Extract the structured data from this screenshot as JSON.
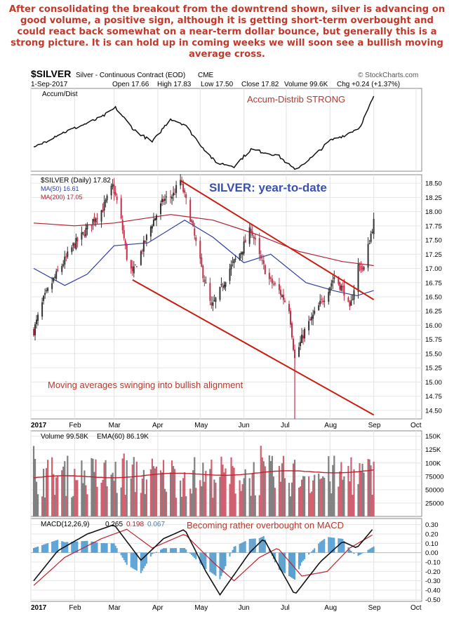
{
  "commentary": "After consolidating the breakout from the downtrend shown, silver is advancing on good volume, a positive sign, although it is getting short-term overbought and could react back somewhat on a near-term dollar bounce, but generally this is a strong picture. It is can hold up in coming weeks we will soon see a bullish moving average cross.",
  "header": {
    "symbol": "$SILVER",
    "name": "Silver - Continuous Contract (EOD)",
    "exchange": "CME",
    "date": "1-Sep-2017",
    "open": "Open 17.66",
    "high": "High 17.83",
    "low": "Low 17.50",
    "close": "Close 17.82",
    "volume": "Volume 99.6K",
    "chg": "Chg +0.24 (+1.37%)",
    "source": "© StockCharts.com"
  },
  "colors": {
    "annotation": "#b03a2e",
    "title_blue": "#3a4fb0",
    "ma50": "#2e3f9e",
    "ma200": "#b0202e",
    "channel": "#c81e12",
    "up_candle": "#333333",
    "down_candle": "#c0304a",
    "macd_hist": "#5aa0d0",
    "vol_up": "#d06070",
    "vol_down": "#808080"
  },
  "chart_data": [
    {
      "type": "line",
      "panel": "accum_dist",
      "label": "Accum/Dist",
      "annotation": "Accum-Distrib STRONG",
      "x": [
        "2017-01-03",
        "2017-01-20",
        "2017-02-05",
        "2017-02-20",
        "2017-03-02",
        "2017-03-15",
        "2017-03-28",
        "2017-04-10",
        "2017-04-20",
        "2017-05-01",
        "2017-05-12",
        "2017-05-25",
        "2017-06-06",
        "2017-06-15",
        "2017-06-25",
        "2017-07-07",
        "2017-07-20",
        "2017-08-01",
        "2017-08-12",
        "2017-08-22",
        "2017-09-01"
      ],
      "y": [
        30,
        48,
        60,
        72,
        85,
        55,
        38,
        70,
        62,
        35,
        10,
        5,
        28,
        24,
        20,
        0,
        18,
        40,
        48,
        58,
        100
      ],
      "ylim": [
        0,
        100
      ]
    },
    {
      "type": "candlestick",
      "panel": "price",
      "title": "SILVER: year-to-date",
      "legend": [
        "$SILVER (Daily) 17.82",
        "MA(50) 16.61",
        "MA(200) 17.05"
      ],
      "annotation": "Moving averages swinging into bullish alignment",
      "x_ticks": [
        "2017",
        "Feb",
        "Mar",
        "Apr",
        "May",
        "Jun",
        "Jul",
        "Aug",
        "Sep",
        "Oct"
      ],
      "y_ticks": [
        "18.50",
        "18.25",
        "18.00",
        "17.75",
        "17.50",
        "17.25",
        "17.00",
        "16.75",
        "16.50",
        "16.25",
        "16.00",
        "15.75",
        "15.50",
        "15.25",
        "15.00",
        "14.75",
        "14.50"
      ],
      "ylim": [
        14.35,
        18.65
      ],
      "closes": [
        {
          "x": "2017-01-03",
          "y": 15.9
        },
        {
          "x": "2017-01-10",
          "y": 16.45
        },
        {
          "x": "2017-01-17",
          "y": 16.8
        },
        {
          "x": "2017-01-24",
          "y": 17.1
        },
        {
          "x": "2017-01-31",
          "y": 17.4
        },
        {
          "x": "2017-02-07",
          "y": 17.6
        },
        {
          "x": "2017-02-14",
          "y": 17.85
        },
        {
          "x": "2017-02-21",
          "y": 18.05
        },
        {
          "x": "2017-02-28",
          "y": 18.45
        },
        {
          "x": "2017-03-05",
          "y": 18.0
        },
        {
          "x": "2017-03-10",
          "y": 17.2
        },
        {
          "x": "2017-03-14",
          "y": 16.9
        },
        {
          "x": "2017-03-21",
          "y": 17.35
        },
        {
          "x": "2017-03-28",
          "y": 17.8
        },
        {
          "x": "2017-04-05",
          "y": 18.2
        },
        {
          "x": "2017-04-12",
          "y": 18.3
        },
        {
          "x": "2017-04-17",
          "y": 18.55
        },
        {
          "x": "2017-04-24",
          "y": 17.9
        },
        {
          "x": "2017-05-01",
          "y": 17.1
        },
        {
          "x": "2017-05-09",
          "y": 16.3
        },
        {
          "x": "2017-05-15",
          "y": 16.6
        },
        {
          "x": "2017-05-22",
          "y": 17.0
        },
        {
          "x": "2017-05-30",
          "y": 17.3
        },
        {
          "x": "2017-06-06",
          "y": 17.7
        },
        {
          "x": "2017-06-12",
          "y": 17.2
        },
        {
          "x": "2017-06-19",
          "y": 16.8
        },
        {
          "x": "2017-06-26",
          "y": 16.6
        },
        {
          "x": "2017-07-03",
          "y": 16.3
        },
        {
          "x": "2017-07-07",
          "y": 15.4
        },
        {
          "x": "2017-07-14",
          "y": 15.9
        },
        {
          "x": "2017-07-21",
          "y": 16.2
        },
        {
          "x": "2017-07-28",
          "y": 16.5
        },
        {
          "x": "2017-08-04",
          "y": 16.85
        },
        {
          "x": "2017-08-11",
          "y": 16.6
        },
        {
          "x": "2017-08-15",
          "y": 16.25
        },
        {
          "x": "2017-08-21",
          "y": 17.05
        },
        {
          "x": "2017-08-25",
          "y": 17.0
        },
        {
          "x": "2017-08-29",
          "y": 17.5
        },
        {
          "x": "2017-09-01",
          "y": 17.82
        }
      ],
      "low_spike": {
        "x": "2017-07-07",
        "y": 14.35
      },
      "ma50": [
        {
          "x": "2017-01-03",
          "y": 17.0
        },
        {
          "x": "2017-01-25",
          "y": 16.7
        },
        {
          "x": "2017-02-10",
          "y": 16.9
        },
        {
          "x": "2017-03-01",
          "y": 17.4
        },
        {
          "x": "2017-03-25",
          "y": 17.45
        },
        {
          "x": "2017-04-20",
          "y": 17.85
        },
        {
          "x": "2017-05-10",
          "y": 17.55
        },
        {
          "x": "2017-06-01",
          "y": 17.1
        },
        {
          "x": "2017-06-20",
          "y": 17.25
        },
        {
          "x": "2017-07-15",
          "y": 16.75
        },
        {
          "x": "2017-08-05",
          "y": 16.6
        },
        {
          "x": "2017-08-20",
          "y": 16.52
        },
        {
          "x": "2017-09-01",
          "y": 16.61
        }
      ],
      "ma200": [
        {
          "x": "2017-01-03",
          "y": 17.8
        },
        {
          "x": "2017-02-01",
          "y": 17.75
        },
        {
          "x": "2017-03-01",
          "y": 17.8
        },
        {
          "x": "2017-04-10",
          "y": 17.95
        },
        {
          "x": "2017-05-10",
          "y": 17.85
        },
        {
          "x": "2017-06-10",
          "y": 17.6
        },
        {
          "x": "2017-07-10",
          "y": 17.3
        },
        {
          "x": "2017-08-10",
          "y": 17.12
        },
        {
          "x": "2017-09-01",
          "y": 17.05
        }
      ],
      "channel_upper": [
        {
          "x": "2017-04-17",
          "y": 18.55
        },
        {
          "x": "2017-09-01",
          "y": 16.45
        }
      ],
      "channel_lower": [
        {
          "x": "2017-03-14",
          "y": 16.8
        },
        {
          "x": "2017-09-01",
          "y": 14.42
        }
      ]
    },
    {
      "type": "bar",
      "panel": "volume",
      "legend": [
        "Volume 99.58K",
        "EMA(60) 86.19K"
      ],
      "y_ticks": [
        "150K",
        "125K",
        "100K",
        "75000",
        "50000",
        "25000"
      ],
      "ylim": [
        0,
        160000
      ],
      "ema60_last": 86190,
      "volume_last": 99580
    },
    {
      "type": "line",
      "panel": "macd",
      "legend": [
        "MACD(12,26,9)",
        "0.265",
        "0.198",
        "0.067"
      ],
      "annotation": "Becoming rather overbought on MACD",
      "y_ticks": [
        "0.30",
        "0.20",
        "0.10",
        "0.00",
        "-0.10",
        "-0.20",
        "-0.30",
        "-0.40",
        "-0.50"
      ],
      "ylim": [
        -0.52,
        0.35
      ],
      "macd": [
        {
          "x": "2017-01-03",
          "y": -0.3
        },
        {
          "x": "2017-01-20",
          "y": 0.02
        },
        {
          "x": "2017-02-10",
          "y": 0.2
        },
        {
          "x": "2017-03-01",
          "y": 0.3
        },
        {
          "x": "2017-03-20",
          "y": -0.08
        },
        {
          "x": "2017-04-05",
          "y": 0.15
        },
        {
          "x": "2017-04-20",
          "y": 0.25
        },
        {
          "x": "2017-05-05",
          "y": -0.2
        },
        {
          "x": "2017-05-15",
          "y": -0.45
        },
        {
          "x": "2017-06-05",
          "y": 0.0
        },
        {
          "x": "2017-06-15",
          "y": 0.15
        },
        {
          "x": "2017-07-07",
          "y": -0.45
        },
        {
          "x": "2017-07-25",
          "y": -0.1
        },
        {
          "x": "2017-08-10",
          "y": 0.12
        },
        {
          "x": "2017-08-20",
          "y": 0.05
        },
        {
          "x": "2017-09-01",
          "y": 0.265
        }
      ],
      "signal": [
        {
          "x": "2017-01-03",
          "y": -0.35
        },
        {
          "x": "2017-01-25",
          "y": -0.05
        },
        {
          "x": "2017-02-20",
          "y": 0.15
        },
        {
          "x": "2017-03-10",
          "y": 0.25
        },
        {
          "x": "2017-03-28",
          "y": 0.05
        },
        {
          "x": "2017-04-20",
          "y": 0.2
        },
        {
          "x": "2017-05-10",
          "y": -0.1
        },
        {
          "x": "2017-05-25",
          "y": -0.3
        },
        {
          "x": "2017-06-12",
          "y": -0.05
        },
        {
          "x": "2017-06-25",
          "y": 0.05
        },
        {
          "x": "2017-07-12",
          "y": -0.25
        },
        {
          "x": "2017-07-30",
          "y": -0.2
        },
        {
          "x": "2017-08-15",
          "y": 0.05
        },
        {
          "x": "2017-09-01",
          "y": 0.198
        }
      ],
      "hist_last": 0.067
    }
  ]
}
